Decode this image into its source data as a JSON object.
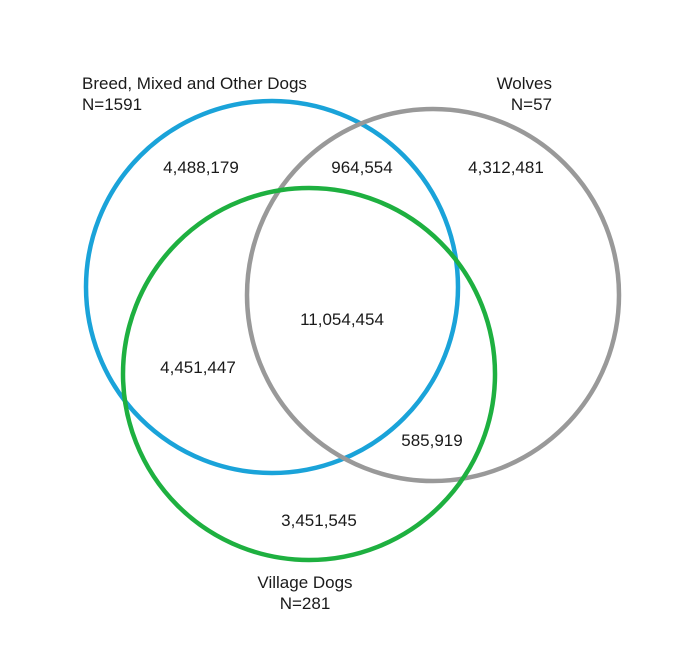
{
  "sets": {
    "breed": {
      "name": "Breed, Mixed and Other Dogs",
      "count": "N=1591",
      "color": "#1aa3d9"
    },
    "wolves": {
      "name": "Wolves",
      "count": "N=57",
      "color": "#999999"
    },
    "village": {
      "name": "Village Dogs",
      "count": "N=281",
      "color": "#1eb040"
    }
  },
  "regions": {
    "breed_only": "4,488,179",
    "breed_wolves": "964,554",
    "wolves_only": "4,312,481",
    "all_three": "11,054,454",
    "breed_village": "4,451,447",
    "wolves_village": "585,919",
    "village_only": "3,451,545"
  }
}
